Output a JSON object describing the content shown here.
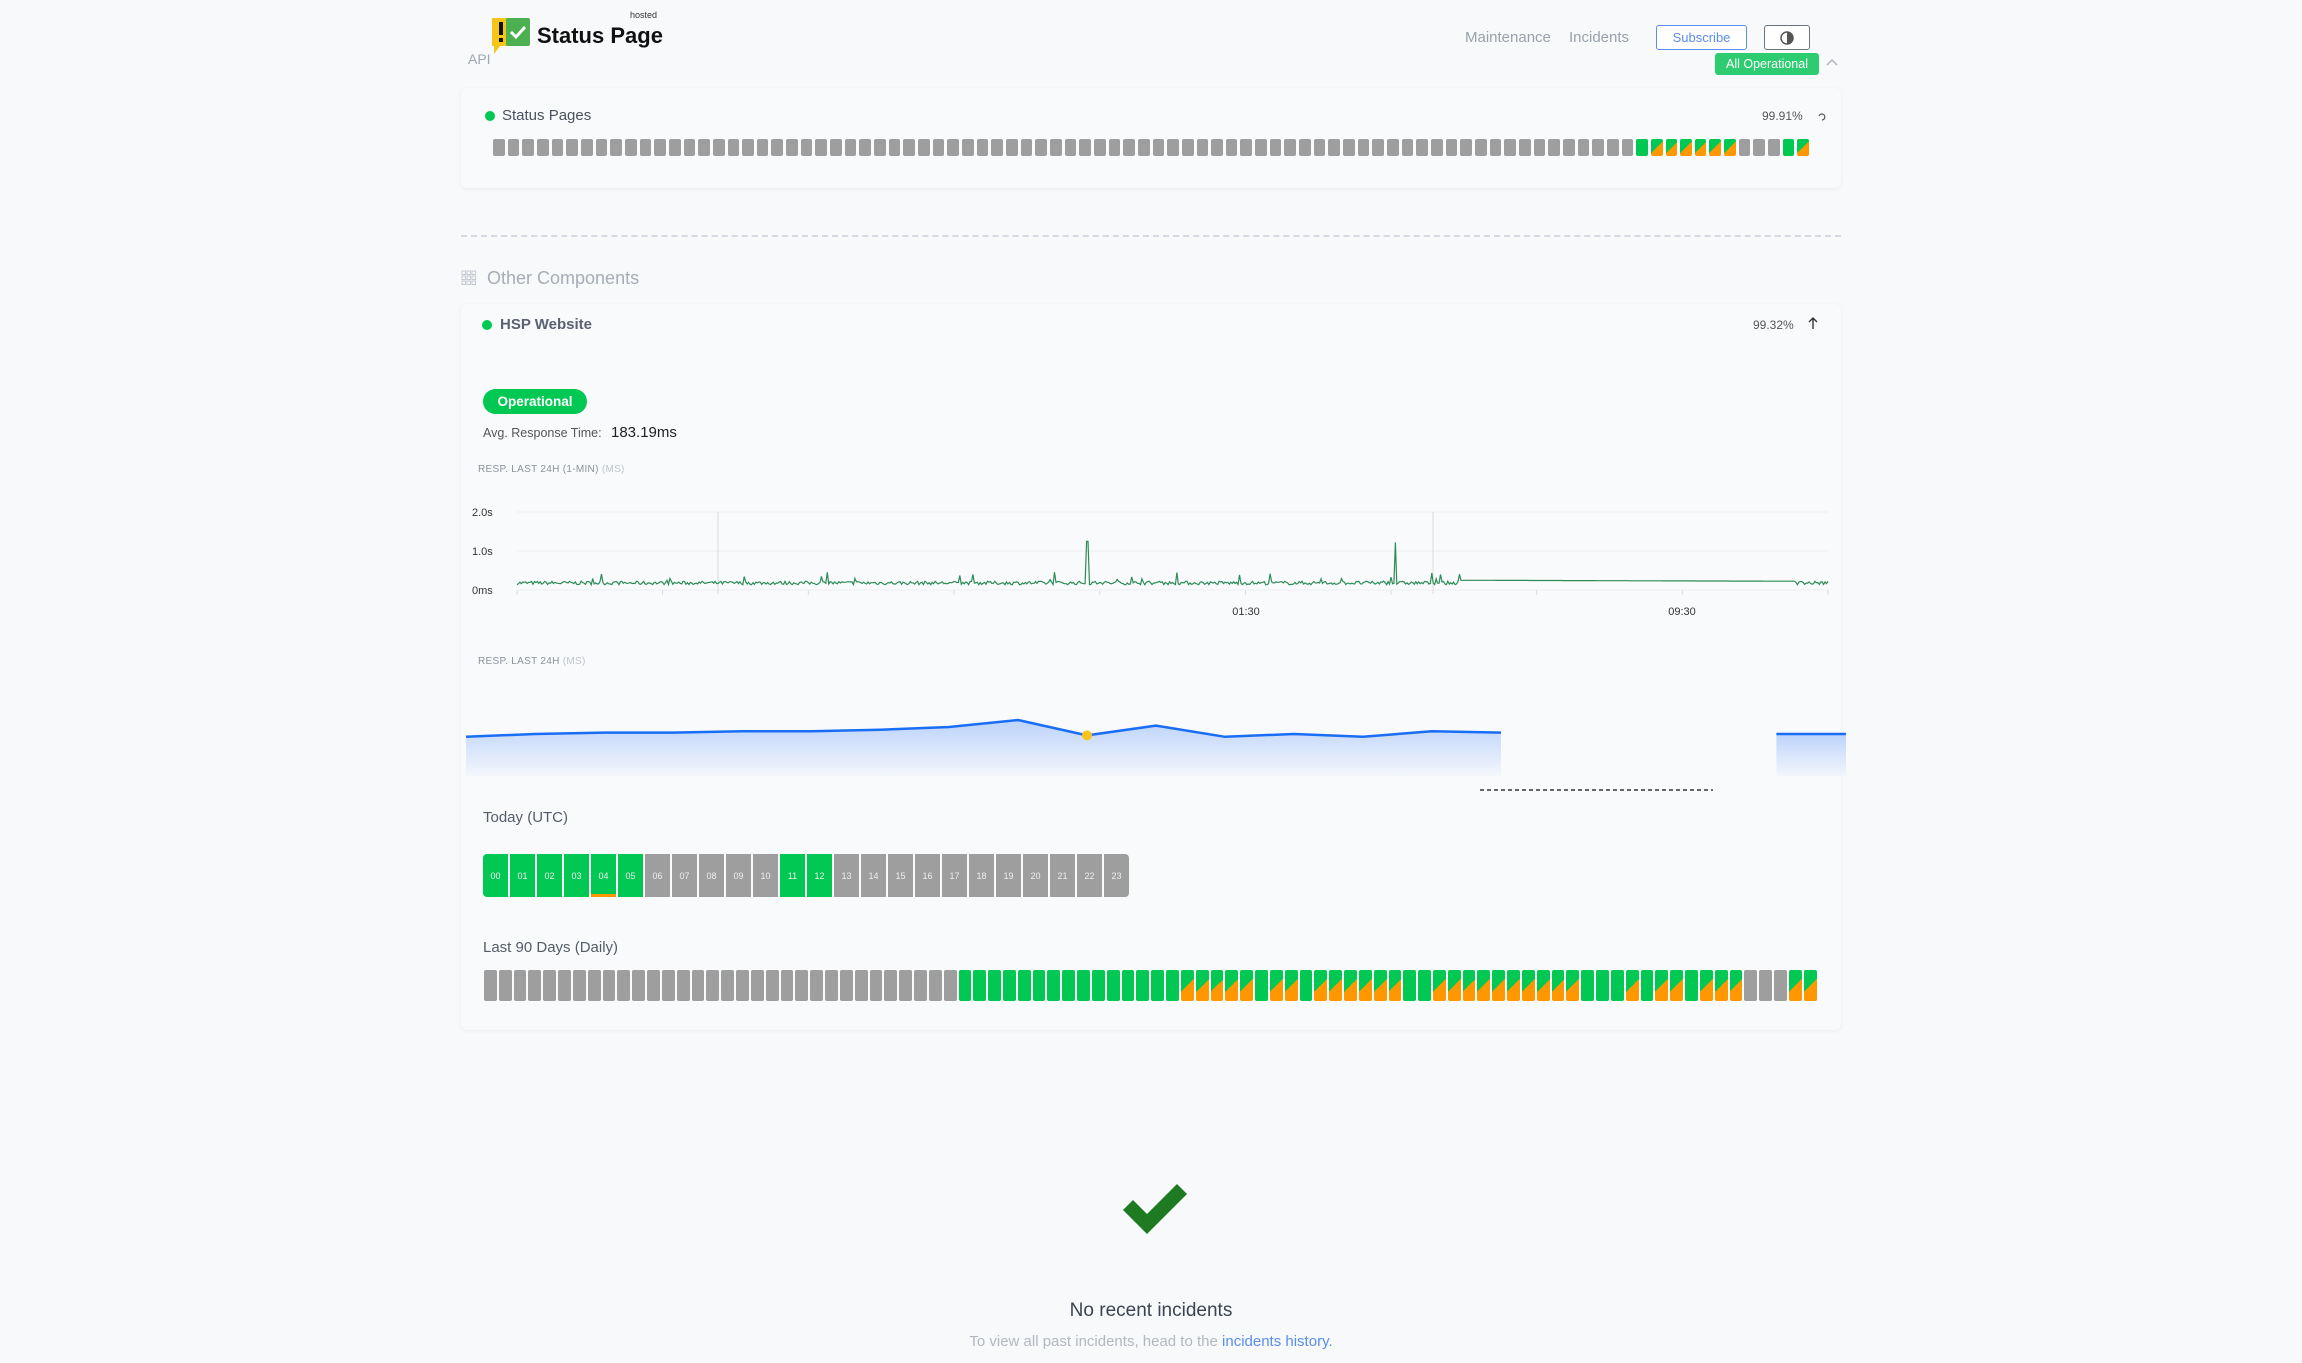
{
  "header": {
    "logo_text": "Status Page",
    "logo_sub": "hosted",
    "api_label": "API",
    "nav": [
      "Maintenance",
      "Incidents"
    ],
    "subscribe": "Subscribe",
    "overall_status": "All Operational"
  },
  "colors": {
    "operational": "#00c853",
    "degraded": "#ff9800",
    "no_data": "#9e9e9e",
    "link": "#5b8def"
  },
  "status_pages": {
    "name": "Status Pages",
    "uptime": "99.91%",
    "days": "xxxxxxxxxxxxxxxxxxxxxxxxxxxxxxxxxxxxxxxxxxxxxxxxxxxxxxxxxxxxxxxxxxxxxxxxxxxxxxGSSSSSSxxxGS"
  },
  "other": {
    "title": "Other Components"
  },
  "hsp": {
    "name": "HSP Website",
    "uptime": "99.32%",
    "status": "Operational",
    "avg_label": "Avg. Response Time:",
    "avg_value": "183.19ms",
    "chart1_title": "RESP. LAST 24H (1-MIN)",
    "chart1_unit": "(MS)",
    "chart2_title": "RESP. LAST 24H",
    "chart2_unit": "(MS)",
    "today_label": "Today (UTC)",
    "days_label": "Last 90 Days (Daily)",
    "hours": [
      {
        "h": "00",
        "s": "g"
      },
      {
        "h": "01",
        "s": "g"
      },
      {
        "h": "02",
        "s": "g"
      },
      {
        "h": "03",
        "s": "g"
      },
      {
        "h": "04",
        "s": "gw"
      },
      {
        "h": "05",
        "s": "g"
      },
      {
        "h": "06",
        "s": "x"
      },
      {
        "h": "07",
        "s": "x"
      },
      {
        "h": "08",
        "s": "x"
      },
      {
        "h": "09",
        "s": "x"
      },
      {
        "h": "10",
        "s": "x"
      },
      {
        "h": "11",
        "s": "g"
      },
      {
        "h": "12",
        "s": "g"
      },
      {
        "h": "13",
        "s": "x"
      },
      {
        "h": "14",
        "s": "x"
      },
      {
        "h": "15",
        "s": "x"
      },
      {
        "h": "16",
        "s": "x"
      },
      {
        "h": "17",
        "s": "x"
      },
      {
        "h": "18",
        "s": "x"
      },
      {
        "h": "19",
        "s": "x"
      },
      {
        "h": "20",
        "s": "x"
      },
      {
        "h": "21",
        "s": "x"
      },
      {
        "h": "22",
        "s": "x"
      },
      {
        "h": "23",
        "s": "x"
      }
    ],
    "days": "xxxxxxxxxxxxxxxxxxxxxxxxxxxxxxxxGGGGGGGGGGGGGGGSSSSSGSSGSSSSSSGGSSSSSSSSSSGGGSGSSGSSSxxxSS"
  },
  "chart_data": [
    {
      "type": "line",
      "title": "RESP. LAST 24H (1-MIN)",
      "ylabel": "(MS)",
      "y_ticks": [
        "0ms",
        "1.0s",
        "2.0s"
      ],
      "ylim": [
        0,
        2.0
      ],
      "x_ticks": [
        "01:30",
        "09:30"
      ],
      "baseline_s": 0.18,
      "spikes_s": [
        {
          "at": 0.435,
          "v": 1.25
        },
        {
          "at": 0.67,
          "v": 1.22
        }
      ],
      "flat_segment": {
        "from": 0.72,
        "to": 0.975,
        "v": 0.25
      }
    },
    {
      "type": "area",
      "title": "RESP. LAST 24H",
      "ylabel": "(MS)",
      "y": [
        0.28,
        0.3,
        0.31,
        0.31,
        0.32,
        0.32,
        0.33,
        0.35,
        0.4,
        0.29,
        0.36,
        0.28,
        0.3,
        0.28,
        0.32,
        0.31
      ],
      "gap_from": 0.75,
      "gap_to": 0.93,
      "end_value": 0.3
    }
  ],
  "incidents": {
    "title": "No recent incidents",
    "hint": "To view all past incidents, head to the",
    "link": "incidents history."
  }
}
